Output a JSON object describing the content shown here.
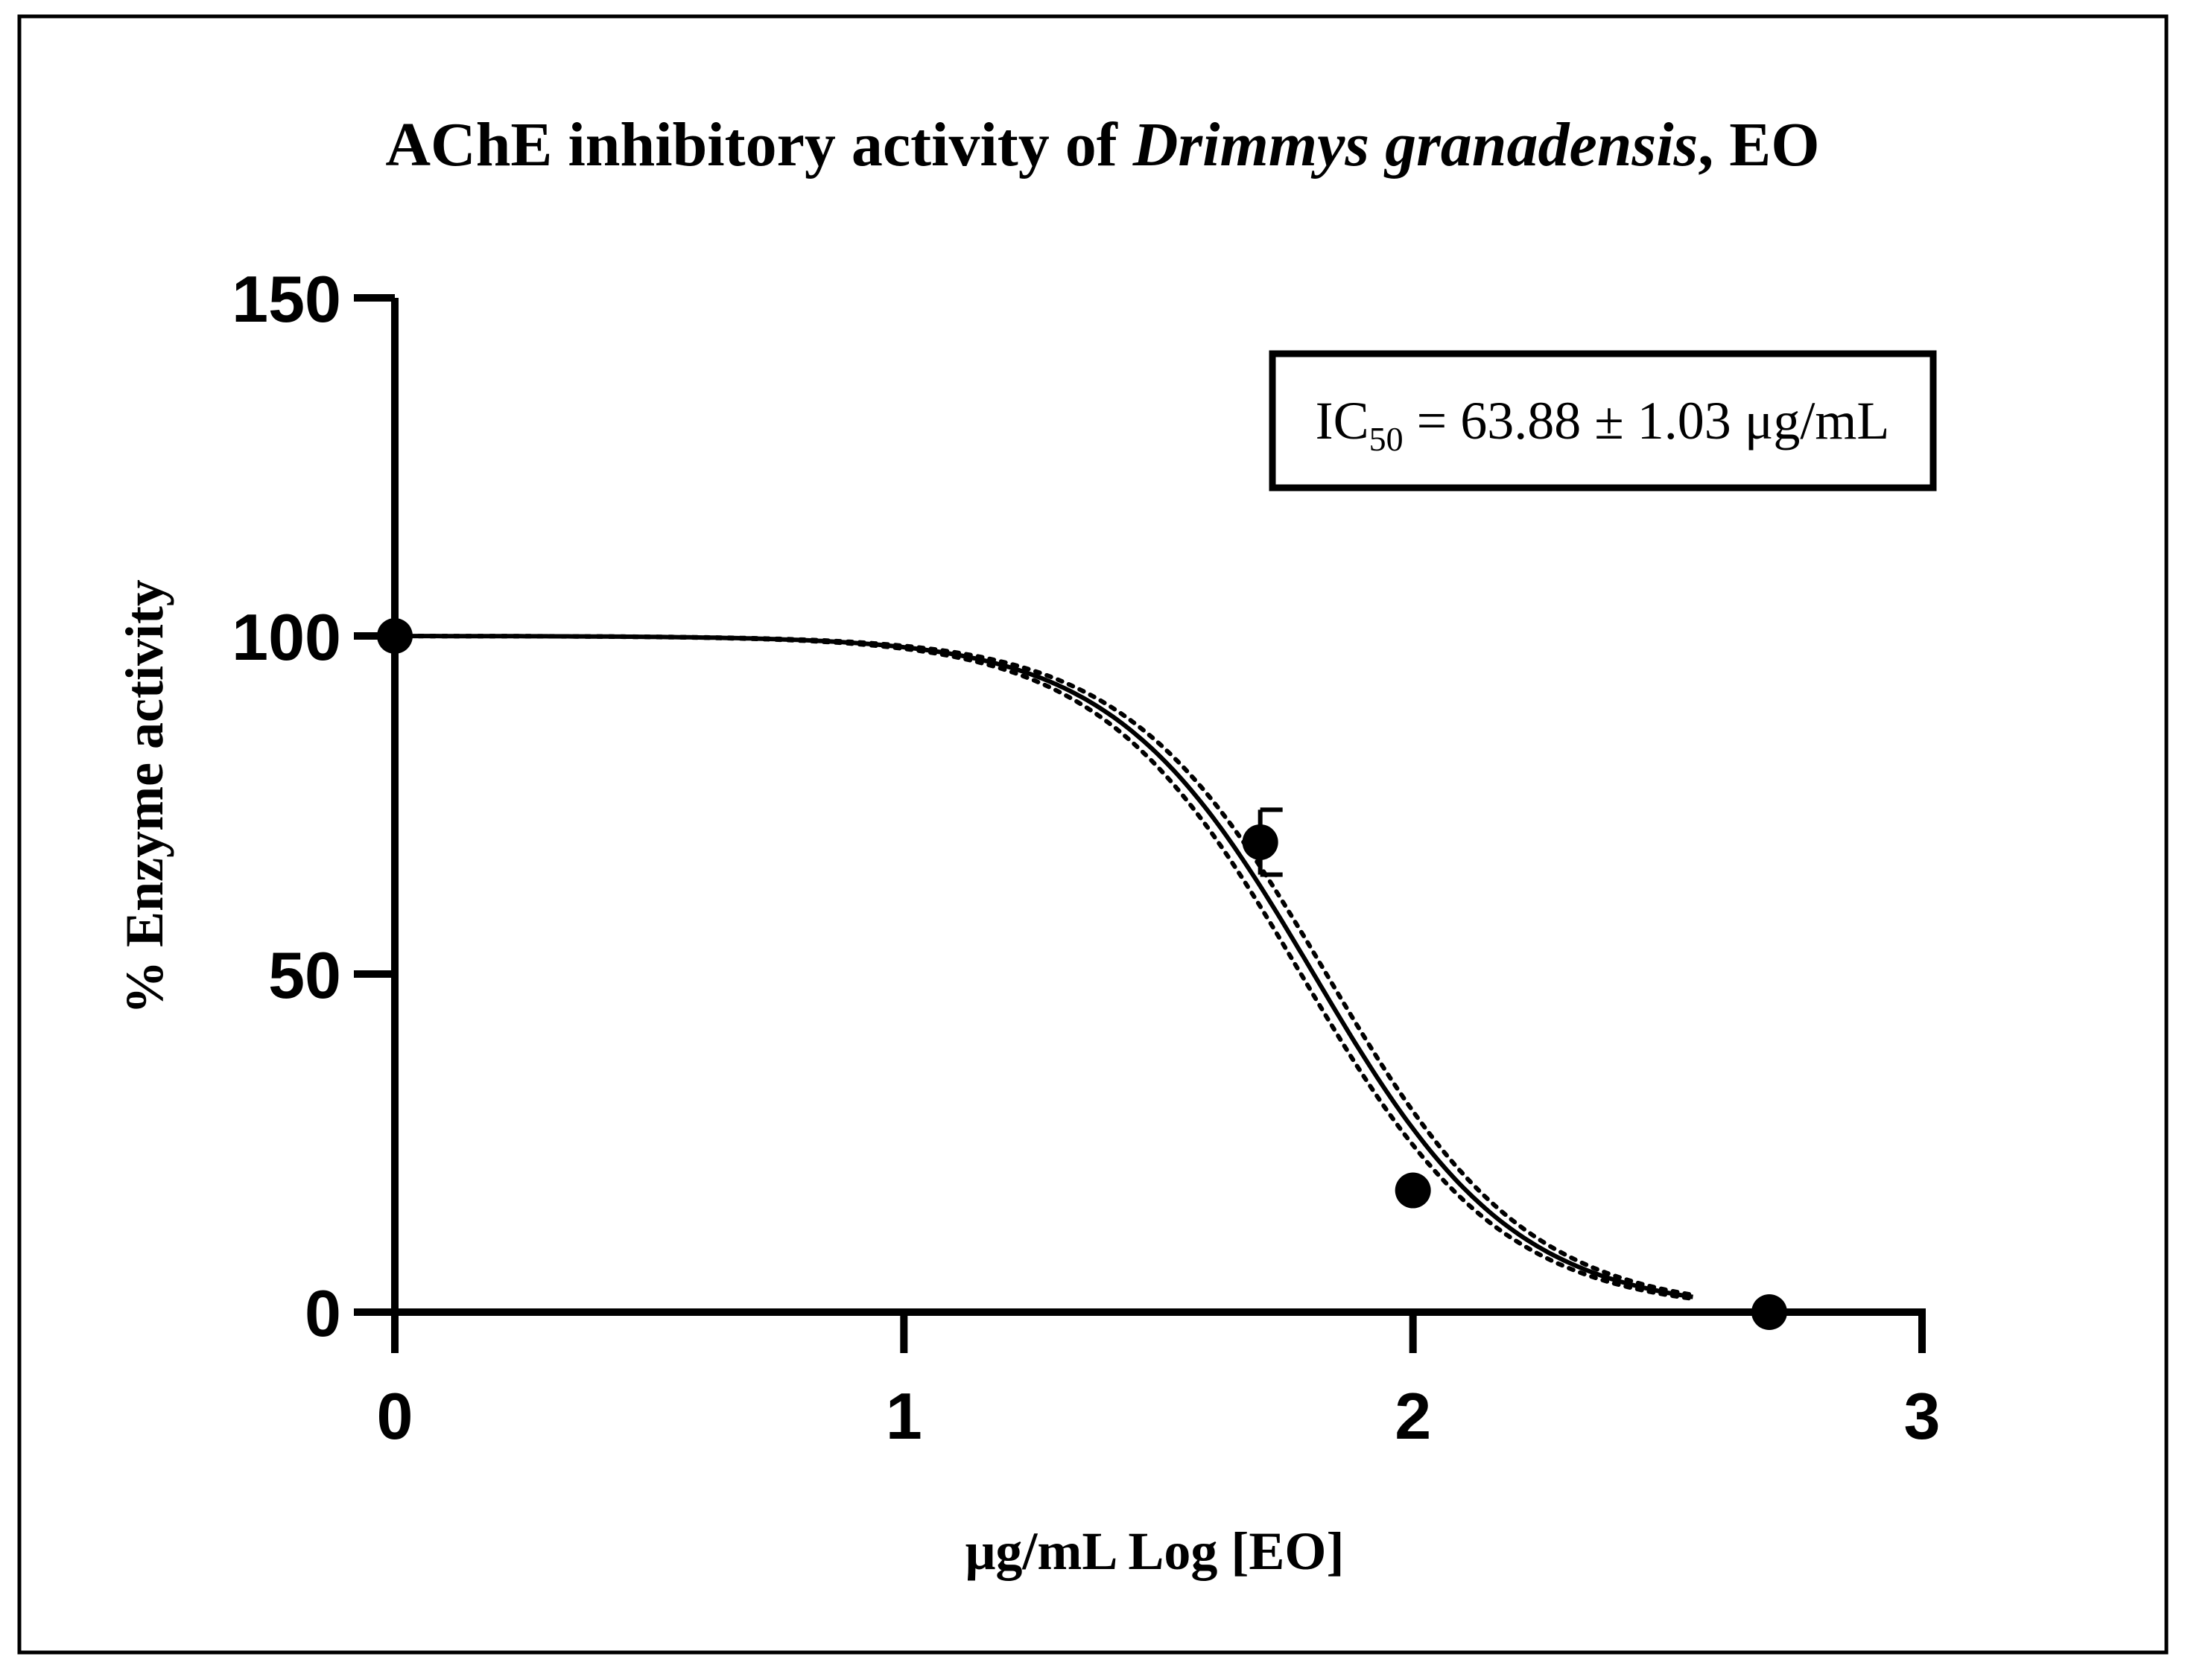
{
  "chart_data": {
    "type": "line",
    "title": {
      "prefix": "AChE inhibitory activity of ",
      "species": "Drimmys granadensis",
      "suffix": ", EO"
    },
    "xlabel": "μg/mL Log [EO]",
    "ylabel": "% Enzyme activity",
    "xlim": [
      0,
      3
    ],
    "ylim": [
      0,
      150
    ],
    "x_ticks": [
      0,
      1,
      2,
      3
    ],
    "x_tick_labels": [
      "0",
      "1",
      "2",
      "3"
    ],
    "y_ticks": [
      0,
      50,
      100,
      150
    ],
    "y_tick_labels": [
      "0",
      "50",
      "100",
      "150"
    ],
    "grid": false,
    "points": {
      "x": [
        0,
        1.7,
        2.0,
        2.7
      ],
      "y": [
        100,
        69.5,
        18,
        0
      ],
      "error": [
        0,
        4.8,
        0,
        0
      ]
    },
    "fit": {
      "style": "solid",
      "model": "four-parameter logistic",
      "top": 100,
      "bottom": 0,
      "log_ic50": 1.805,
      "hill_slope": -2.2
    },
    "confidence_band": {
      "style": "dotted",
      "log_ic50_lower": 1.78,
      "log_ic50_upper": 1.83
    },
    "annotation": {
      "ic_prefix": "IC",
      "ic_subscript": "50",
      "value_text": " = 63.88 ± 1.03 μg/mL"
    },
    "colors": {
      "line": "#000000",
      "markers": "#000000",
      "background": "#ffffff"
    }
  }
}
